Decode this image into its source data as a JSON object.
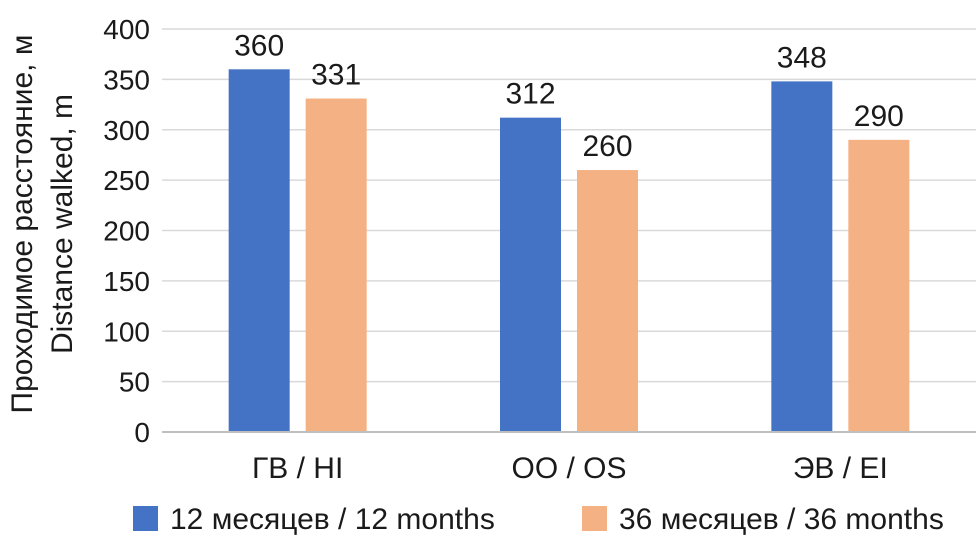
{
  "chart_data": {
    "type": "bar",
    "title": "",
    "ylabel_lines": [
      "Проходимое расстояние, м",
      "Distance walked, m"
    ],
    "xlabel": "",
    "categories": [
      "ГВ / HI",
      "ОО / OS",
      "ЭВ / EI"
    ],
    "series": [
      {
        "name": "12 месяцев / 12 months",
        "color": "#4472c4",
        "values": [
          360,
          312,
          348
        ]
      },
      {
        "name": "36 месяцев / 36 months",
        "color": "#f4b183",
        "values": [
          331,
          260,
          290
        ]
      }
    ],
    "ylim": [
      0,
      400
    ],
    "yticks": [
      0,
      50,
      100,
      150,
      200,
      250,
      300,
      350,
      400
    ],
    "grid": true,
    "legend_position": "bottom",
    "gridline_color": "#d9d9d9"
  }
}
